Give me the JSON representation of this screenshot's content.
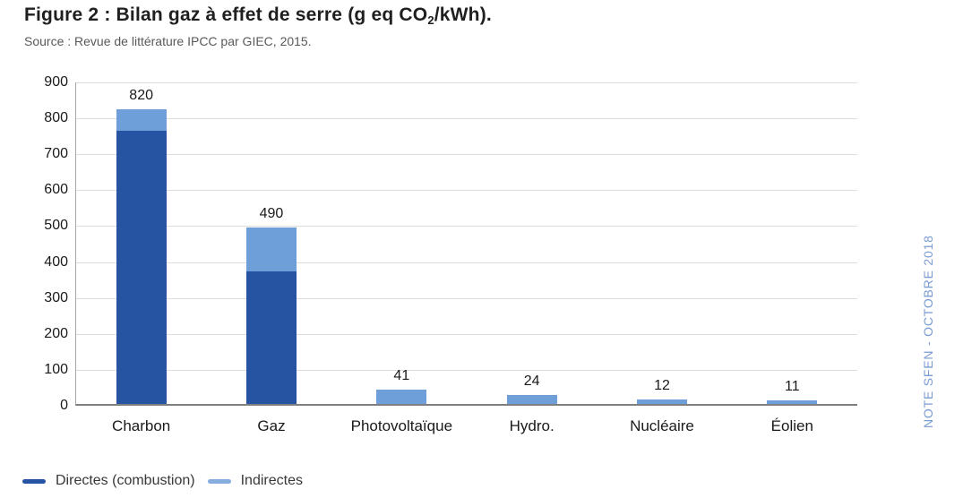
{
  "header": {
    "title_pre": "Figure 2 : Bilan gaz à effet de serre (g eq CO",
    "title_sub": "2",
    "title_post": "/kWh).",
    "source": "Source : Revue de littérature IPCC par GIEC, 2015."
  },
  "side_note": "NOTE SFEN - OCTOBRE 2018",
  "colors": {
    "direct_series": "#2753a3",
    "indirect_series": "#6f9fd8",
    "legend_indirect_swatch": "#85aede",
    "gridline": "#dcdcdc",
    "axis_left": "#a6a6a6",
    "axis_bottom": "#7f7f7f",
    "side_note_text": "#7a9cd1",
    "subtitle_text": "#595959"
  },
  "chart_data": {
    "type": "bar",
    "stacked": true,
    "title": "Figure 2 : Bilan gaz à effet de serre (g eq CO2/kWh).",
    "subtitle": "Source : Revue de littérature IPCC par GIEC, 2015.",
    "categories": [
      "Charbon",
      "Gaz",
      "Photovoltaïque",
      "Hydro.",
      "Nucléaire",
      "Éolien"
    ],
    "series": [
      {
        "name": "Directes (combustion)",
        "color": "#2753a3",
        "values": [
          760,
          370,
          0,
          0,
          0,
          0
        ]
      },
      {
        "name": "Indirectes",
        "color": "#6f9fd8",
        "values": [
          60,
          120,
          41,
          24,
          12,
          11
        ]
      }
    ],
    "totals": [
      820,
      490,
      41,
      24,
      12,
      11
    ],
    "total_labels": [
      "820",
      "490",
      "41",
      "24",
      "12",
      "11"
    ],
    "xlabel": "",
    "ylabel": "",
    "ylim": [
      0,
      900
    ],
    "yticks": [
      0,
      100,
      200,
      300,
      400,
      500,
      600,
      700,
      800,
      900
    ],
    "grid": true,
    "legend_position": "bottom-left"
  }
}
